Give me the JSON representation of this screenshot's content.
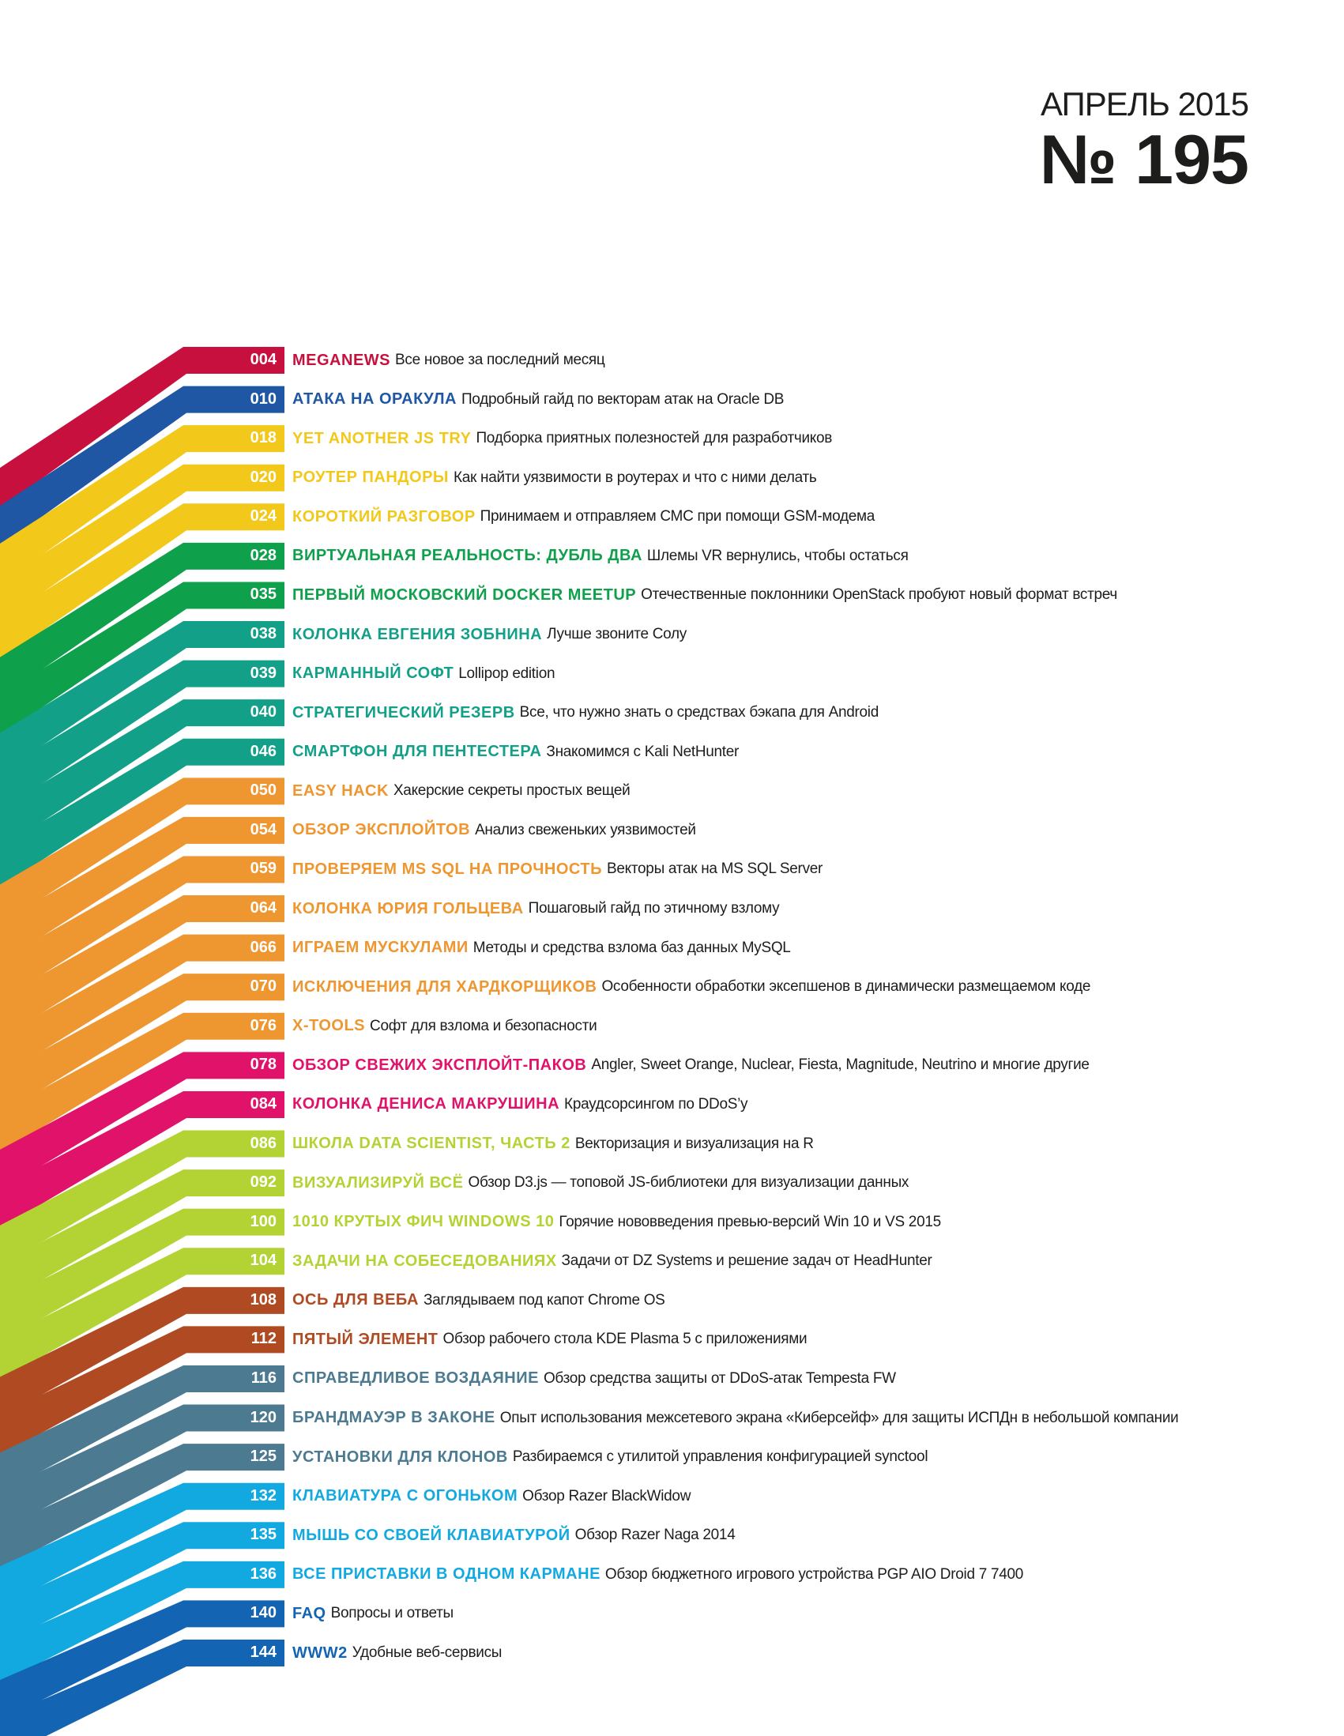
{
  "header": {
    "month": "АПРЕЛЬ 2015",
    "number": "№ 195"
  },
  "toc": [
    {
      "page": "004",
      "title": "MEGANEWS",
      "desc": "Все новое за последний месяц",
      "color": "#c8103e"
    },
    {
      "page": "010",
      "title": "АТАКА НА ОРАКУЛА",
      "desc": "Подробный гайд по векторам атак на Oracle DB",
      "color": "#1f57a4"
    },
    {
      "page": "018",
      "title": "YET ANOTHER JS TRY",
      "desc": "Подборка приятных полезностей для разработчиков",
      "color": "#f2c81a"
    },
    {
      "page": "020",
      "title": "РОУТЕР ПАНДОРЫ",
      "desc": "Как найти уязвимости в роутерах и что с ними делать",
      "color": "#f2c81a"
    },
    {
      "page": "024",
      "title": "КОРОТКИЙ РАЗГОВОР",
      "desc": "Принимаем и отправляем СМС при помощи GSM-модема",
      "color": "#f2c81a"
    },
    {
      "page": "028",
      "title": "ВИРТУАЛЬНАЯ РЕАЛЬНОСТЬ: ДУБЛЬ ДВА",
      "desc": "Шлемы VR вернулись, чтобы остаться",
      "color": "#0ea04b"
    },
    {
      "page": "035",
      "title": "ПЕРВЫЙ МОСКОВСКИЙ DOCKER MEETUP",
      "desc": "Отечественные поклонники OpenStack пробуют новый формат встреч",
      "color": "#0ea04b"
    },
    {
      "page": "038",
      "title": "КОЛОНКА ЕВГЕНИЯ ЗОБНИНА",
      "desc": "Лучше звоните Солу",
      "color": "#13a088"
    },
    {
      "page": "039",
      "title": "КАРМАННЫЙ СОФТ",
      "desc": "Lollipop edition",
      "color": "#13a088"
    },
    {
      "page": "040",
      "title": "СТРАТЕГИЧЕСКИЙ РЕЗЕРВ",
      "desc": "Все, что нужно знать о средствах бэкапа для Android",
      "color": "#13a088"
    },
    {
      "page": "046",
      "title": "СМАРТФОН ДЛЯ ПЕНТЕСТЕРА",
      "desc": "Знакомимся с Kali NetHunter",
      "color": "#13a088"
    },
    {
      "page": "050",
      "title": "EASY HACK",
      "desc": "Хакерские секреты простых вещей",
      "color": "#ee9630"
    },
    {
      "page": "054",
      "title": "ОБЗОР ЭКСПЛОЙТОВ",
      "desc": "Анализ свеженьких уязвимостей",
      "color": "#ee9630"
    },
    {
      "page": "059",
      "title": "ПРОВЕРЯЕМ MS SQL НА ПРОЧНОСТЬ",
      "desc": "Векторы атак на MS SQL Server",
      "color": "#ee9630"
    },
    {
      "page": "064",
      "title": "КОЛОНКА ЮРИЯ ГОЛЬЦЕВА",
      "desc": "Пошаговый гайд по этичному взлому",
      "color": "#ee9630"
    },
    {
      "page": "066",
      "title": "ИГРАЕМ МУСКУЛАМИ",
      "desc": "Методы и средства взлома баз данных MySQL",
      "color": "#ee9630"
    },
    {
      "page": "070",
      "title": "ИСКЛЮЧЕНИЯ ДЛЯ ХАРДКОРЩИКОВ",
      "desc": "Особенности обработки эксепшенов в динамически размещаемом коде",
      "color": "#ee9630"
    },
    {
      "page": "076",
      "title": "X-TOOLS",
      "desc": "Софт для взлома и безопасности",
      "color": "#ee9630"
    },
    {
      "page": "078",
      "title": "ОБЗОР СВЕЖИХ ЭКСПЛОЙТ-ПАКОВ",
      "desc": "Angler, Sweet Orange, Nuclear, Fiesta, Magnitude, Neutrino и многие другие",
      "color": "#e0126a"
    },
    {
      "page": "084",
      "title": "КОЛОНКА ДЕНИСА МАКРУШИНА",
      "desc": "Краудсорсингом по DDoS’у",
      "color": "#e0126a"
    },
    {
      "page": "086",
      "title": "ШКОЛА DATA SCIENTIST, ЧАСТЬ 2",
      "desc": "Векторизация и визуализация на R",
      "color": "#b3d335"
    },
    {
      "page": "092",
      "title": "ВИЗУАЛИЗИРУЙ ВСЁ",
      "desc": "Обзор D3.js — топовой JS-библиотеки для визуализации данных",
      "color": "#b3d335"
    },
    {
      "page": "100",
      "title": "1010 КРУТЫХ ФИЧ WINDOWS 10",
      "desc": "Горячие нововведения превью-версий Win 10 и VS 2015",
      "color": "#b3d335"
    },
    {
      "page": "104",
      "title": "ЗАДАЧИ НА СОБЕСЕДОВАНИЯХ",
      "desc": "Задачи от DZ Systems и решение задач от HeadHunter",
      "color": "#b3d335"
    },
    {
      "page": "108",
      "title": "ОСЬ ДЛЯ ВЕБА",
      "desc": "Заглядываем под капот Chrome OS",
      "color": "#b04a22"
    },
    {
      "page": "112",
      "title": "ПЯТЫЙ ЭЛЕМЕНТ",
      "desc": "Обзор рабочего стола KDE Plasma 5 с приложениями",
      "color": "#b04a22"
    },
    {
      "page": "116",
      "title": "СПРАВЕДЛИВОЕ ВОЗДАЯНИЕ",
      "desc": "Обзор средства защиты от DDoS-атак Tempesta FW",
      "color": "#4b7a91"
    },
    {
      "page": "120",
      "title": "БРАНДМАУЭР В ЗАКОНЕ",
      "desc": "Опыт использования межсетевого экрана «Киберсейф» для защиты ИСПДн в небольшой компании",
      "color": "#4b7a91"
    },
    {
      "page": "125",
      "title": "УСТАНОВКИ ДЛЯ КЛОНОВ",
      "desc": "Разбираемся с утилитой управления конфигурацией synctool",
      "color": "#4b7a91"
    },
    {
      "page": "132",
      "title": "КЛАВИАТУРА С ОГОНЬКОМ",
      "desc": "Обзор Razer BlackWidow",
      "color": "#12a9e1"
    },
    {
      "page": "135",
      "title": "МЫШЬ СО СВОЕЙ КЛАВИАТУРОЙ",
      "desc": "Обзор Razer Naga 2014",
      "color": "#12a9e1"
    },
    {
      "page": "136",
      "title": "ВСЕ ПРИСТАВКИ В ОДНОМ КАРМАНЕ",
      "desc": "Обзор бюджетного игрового устройства PGP AIO Droid 7 7400",
      "color": "#12a9e1"
    },
    {
      "page": "140",
      "title": "FAQ",
      "desc": "Вопросы и ответы",
      "color": "#1464b4"
    },
    {
      "page": "144",
      "title": "WWW2",
      "desc": "Удобные веб-сервисы",
      "color": "#1464b4"
    }
  ]
}
